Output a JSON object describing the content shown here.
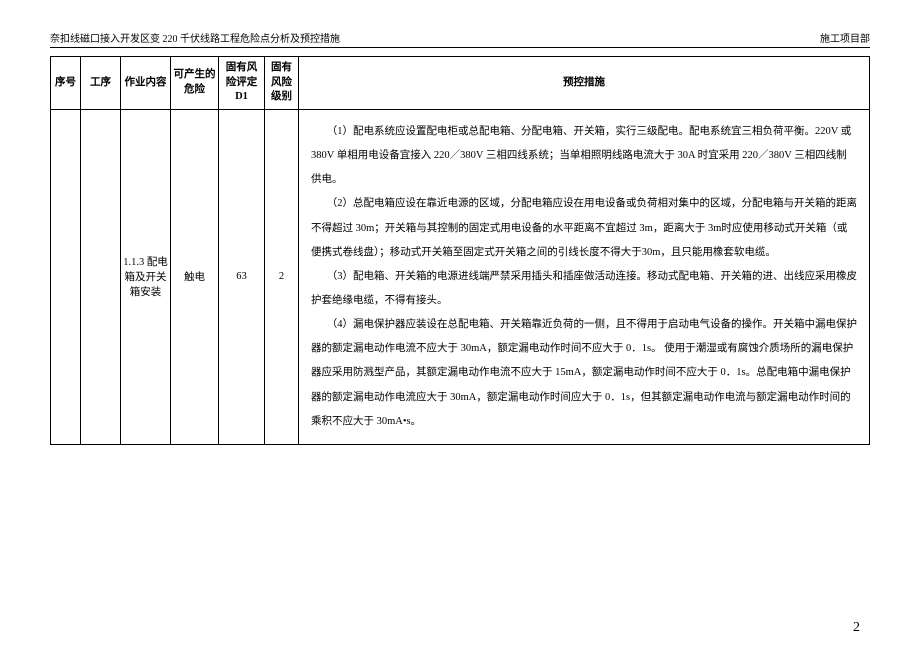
{
  "header": {
    "left": "奈扣线磁口接入开发区变 220 千伏线路工程危险点分析及预控措施",
    "right": "施工项目部"
  },
  "columns": {
    "seq": "序号",
    "proc": "工序",
    "work": "作业内容",
    "hazard": "可产生的危险",
    "d1": "固有风险评定D1",
    "level": "固有风险级别",
    "measure": "预控措施"
  },
  "row": {
    "seq": "",
    "proc": "",
    "work": "1.1.3 配电箱及开关箱安装",
    "hazard": "触电",
    "d1": "63",
    "level": "2",
    "measures": [
      "（1）配电系统应设置配电柜或总配电箱、分配电箱、开关箱，实行三级配电。配电系统宜三相负荷平衡。220V 或 380V 单相用电设备宜接入 220／380V 三相四线系统；当单相照明线路电流大于 30A 时宜采用 220／380V 三相四线制供电。",
      "（2）总配电箱应设在靠近电源的区域，分配电箱应设在用电设备或负荷相对集中的区域，分配电箱与开关箱的距离不得超过 30m；开关箱与其控制的固定式用电设备的水平距离不宜超过 3m，距离大于 3m时应使用移动式开关箱（或便携式卷线盘）；移动式开关箱至固定式开关箱之间的引线长度不得大于30m，且只能用橡套软电缆。",
      "（3）配电箱、开关箱的电源进线端严禁采用插头和插座做活动连接。移动式配电箱、开关箱的进、出线应采用橡皮护套绝缘电缆，不得有接头。",
      "（4）漏电保护器应装设在总配电箱、开关箱靠近负荷的一侧，且不得用于启动电气设备的操作。开关箱中漏电保护器的额定漏电动作电流不应大于 30mA，额定漏电动作时间不应大于 0．1s。 使用于潮湿或有腐蚀介质场所的漏电保护器应采用防溅型产品，其额定漏电动作电流不应大于 15mA，额定漏电动作时间不应大于 0．1s。总配电箱中漏电保护器的额定漏电动作电流应大于 30mA，额定漏电动作时间应大于 0．1s，但其额定漏电动作电流与额定漏电动作时间的乘积不应大于 30mA•s。"
    ]
  },
  "pageNum": "2"
}
